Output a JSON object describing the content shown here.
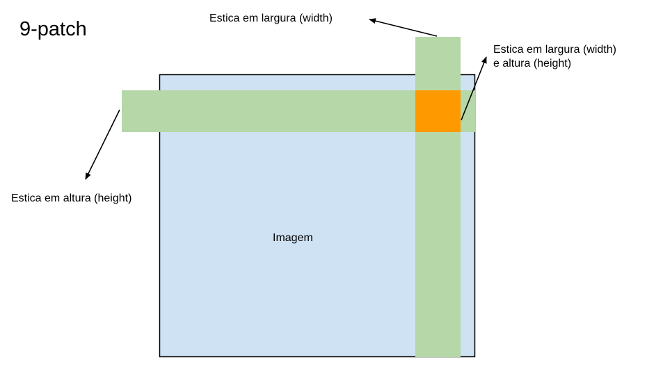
{
  "title": "9-patch",
  "image_label": "Imagem",
  "labels": {
    "stretch_width": "Estica em largura (width)",
    "stretch_both_line1": "Estica em largura (width)",
    "stretch_both_line2": "e altura (height)",
    "stretch_height": "Estica em altura (height)"
  },
  "colors": {
    "image_fill": "#cfe2f3",
    "image_border": "#000000",
    "stretch_band": "#b6d7a8",
    "overlap": "#ff9900",
    "arrow": "#000000"
  }
}
